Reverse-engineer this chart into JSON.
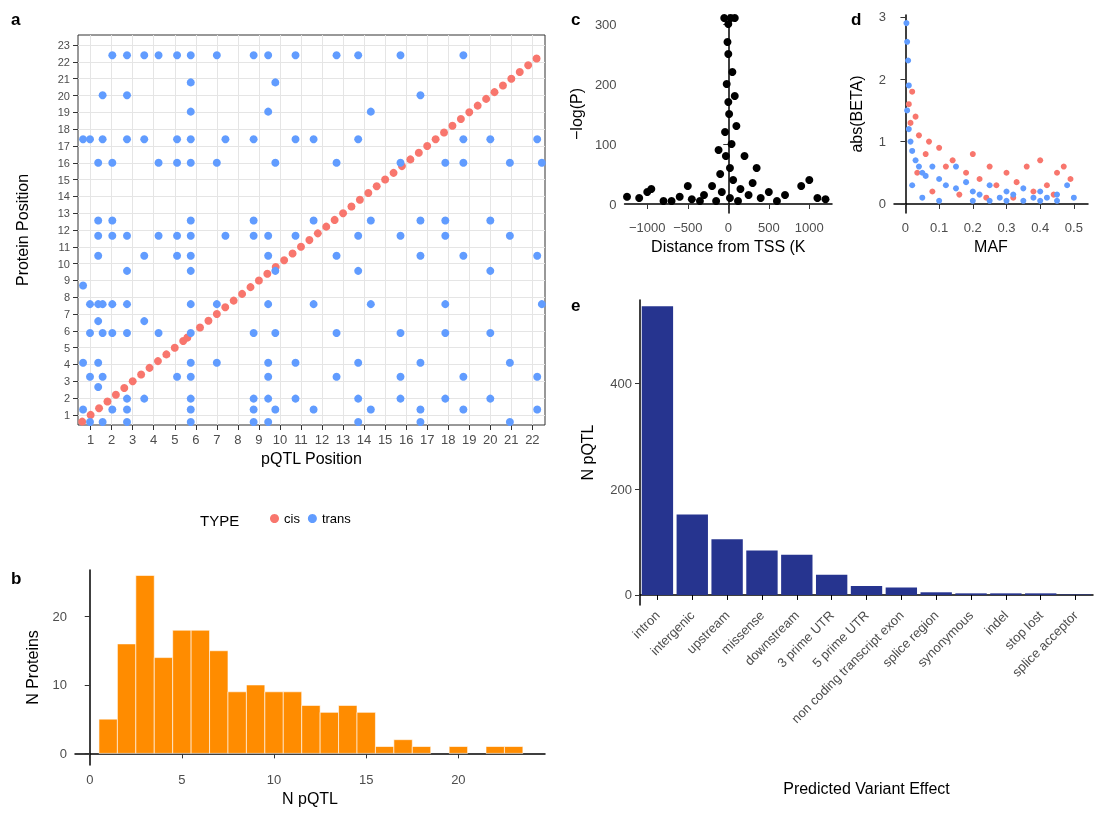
{
  "chart_data": [
    {
      "type": "scatter",
      "title": "a",
      "xlabel": "pQTL Position",
      "ylabel": "Protein Position",
      "legend_title": "TYPE",
      "legend": "bottom",
      "grid": true,
      "marker": "circle",
      "xlim": [
        0.4,
        22.6
      ],
      "ylim": [
        0.4,
        23.6
      ],
      "xticks": [
        1,
        2,
        3,
        4,
        5,
        6,
        7,
        8,
        9,
        10,
        11,
        12,
        13,
        14,
        15,
        16,
        17,
        18,
        19,
        20,
        21,
        22
      ],
      "yticks": [
        1,
        2,
        3,
        4,
        5,
        6,
        7,
        8,
        9,
        10,
        11,
        12,
        13,
        14,
        15,
        16,
        17,
        18,
        19,
        20,
        21,
        22,
        23
      ],
      "series": [
        {
          "name": "cis",
          "color": "#f8766d",
          "x": [
            0.6,
            1.0,
            1.4,
            1.8,
            2.2,
            2.6,
            3.0,
            3.4,
            3.8,
            4.2,
            4.6,
            5.0,
            5.4,
            5.6,
            6.2,
            6.6,
            7.0,
            7.4,
            7.8,
            8.2,
            8.6,
            9.0,
            9.4,
            9.8,
            10.2,
            10.6,
            11.0,
            11.4,
            11.8,
            12.2,
            12.6,
            13.0,
            13.4,
            13.8,
            14.2,
            14.6,
            15.0,
            15.4,
            15.8,
            16.2,
            16.6,
            17.0,
            17.4,
            17.8,
            18.2,
            18.6,
            19.0,
            19.4,
            19.8,
            20.2,
            20.6,
            21.0,
            21.4,
            21.8,
            22.2
          ],
          "values": [
            0.6,
            1.0,
            1.4,
            1.8,
            2.2,
            2.6,
            3.0,
            3.4,
            3.8,
            4.2,
            4.6,
            5.0,
            5.4,
            5.6,
            6.2,
            6.6,
            7.0,
            7.4,
            7.8,
            8.2,
            8.6,
            9.0,
            9.4,
            9.8,
            10.2,
            10.6,
            11.0,
            11.4,
            11.8,
            12.2,
            12.6,
            13.0,
            13.4,
            13.8,
            14.2,
            14.6,
            15.0,
            15.4,
            15.8,
            16.2,
            16.6,
            17.0,
            17.4,
            17.8,
            18.2,
            18.6,
            19.0,
            19.4,
            19.8,
            20.2,
            20.6,
            21.0,
            21.4,
            21.8,
            22.2
          ]
        },
        {
          "name": "trans",
          "color": "#619cff",
          "x": [
            0.64,
            0.64,
            0.64,
            0.64,
            0.97,
            0.97,
            0.97,
            0.97,
            0.97,
            1.36,
            1.36,
            1.36,
            1.36,
            1.36,
            1.36,
            1.36,
            1.36,
            1.57,
            1.57,
            1.57,
            1.57,
            1.57,
            1.57,
            2.03,
            2.03,
            2.03,
            2.03,
            2.03,
            2.03,
            2.03,
            2.73,
            2.73,
            2.73,
            2.73,
            2.73,
            2.73,
            2.73,
            2.73,
            2.73,
            2.73,
            3.55,
            3.55,
            3.55,
            3.55,
            3.55,
            4.23,
            4.23,
            4.23,
            4.23,
            5.11,
            5.11,
            5.11,
            5.11,
            5.11,
            5.11,
            5.76,
            5.76,
            5.76,
            5.76,
            5.76,
            5.76,
            5.76,
            5.76,
            5.76,
            5.76,
            5.76,
            5.76,
            5.76,
            5.76,
            5.76,
            5.76,
            7.0,
            7.0,
            7.0,
            7.0,
            7.41,
            7.41,
            8.75,
            8.75,
            8.75,
            8.75,
            8.75,
            8.75,
            8.75,
            8.75,
            9.44,
            9.44,
            9.44,
            9.44,
            9.44,
            9.44,
            9.44,
            9.44,
            9.44,
            9.78,
            9.78,
            9.78,
            9.78,
            9.78,
            10.74,
            10.74,
            10.74,
            10.74,
            10.74,
            11.6,
            11.6,
            11.6,
            11.6,
            12.69,
            12.69,
            12.69,
            12.69,
            12.69,
            13.72,
            13.72,
            13.72,
            13.72,
            13.72,
            13.72,
            13.72,
            14.32,
            14.32,
            14.32,
            14.32,
            15.73,
            15.73,
            15.73,
            15.73,
            15.73,
            15.73,
            16.68,
            16.68,
            16.68,
            16.68,
            16.68,
            16.68,
            17.86,
            17.86,
            17.86,
            17.86,
            17.86,
            17.86,
            18.72,
            18.72,
            18.72,
            18.72,
            18.72,
            18.72,
            20.0,
            20.0,
            20.0,
            20.0,
            20.0,
            20.93,
            20.93,
            20.93,
            20.93,
            22.23,
            22.23,
            22.23,
            22.23,
            22.45,
            22.45
          ],
          "values": [
            17.4,
            8.7,
            4.1,
            1.32,
            17.4,
            7.59,
            5.87,
            3.27,
            0.58,
            16.0,
            12.57,
            11.66,
            10.47,
            7.59,
            6.58,
            4.1,
            2.66,
            20.02,
            17.4,
            7.59,
            5.87,
            3.27,
            0.58,
            22.4,
            16.0,
            12.57,
            11.66,
            7.59,
            5.87,
            1.32,
            22.4,
            20.02,
            17.4,
            11.66,
            9.57,
            7.59,
            5.87,
            1.97,
            1.32,
            0.58,
            22.4,
            17.4,
            10.47,
            6.58,
            1.97,
            22.4,
            16.0,
            11.66,
            5.87,
            22.4,
            17.4,
            16.0,
            11.66,
            10.47,
            3.27,
            22.4,
            20.78,
            19.04,
            17.4,
            16.0,
            12.57,
            11.66,
            10.47,
            9.57,
            7.59,
            5.87,
            4.1,
            3.27,
            1.97,
            1.32,
            0.58,
            22.4,
            16.0,
            7.59,
            4.1,
            17.4,
            11.66,
            22.4,
            17.4,
            12.57,
            11.66,
            5.87,
            1.97,
            1.32,
            0.58,
            22.4,
            19.04,
            11.66,
            10.47,
            7.59,
            4.1,
            3.27,
            1.97,
            0.58,
            20.78,
            16.0,
            9.57,
            5.87,
            1.32,
            22.4,
            17.4,
            11.66,
            4.1,
            1.97,
            17.4,
            12.57,
            7.59,
            1.32,
            22.4,
            16.0,
            10.47,
            5.87,
            3.27,
            22.4,
            17.4,
            11.66,
            9.57,
            4.1,
            1.97,
            0.58,
            19.04,
            12.57,
            7.59,
            1.32,
            22.4,
            16.0,
            11.66,
            5.87,
            3.27,
            1.97,
            20.02,
            12.57,
            10.47,
            4.1,
            1.32,
            0.58,
            16.0,
            12.57,
            11.66,
            7.59,
            5.87,
            1.97,
            22.4,
            17.4,
            16.0,
            10.47,
            3.27,
            1.32,
            17.4,
            12.57,
            9.57,
            5.87,
            1.97,
            16.0,
            11.66,
            4.1,
            0.58,
            17.4,
            10.47,
            3.27,
            1.32,
            16.0,
            7.59
          ]
        }
      ]
    },
    {
      "type": "histogram",
      "title": "b",
      "xlabel": "N pQTL",
      "ylabel": "N Proteins",
      "color": "#ff8c00",
      "xlim": [
        -0.8,
        24.7
      ],
      "ylim": [
        -1.7,
        26.8
      ],
      "xticks": [
        0,
        5,
        10,
        15,
        20
      ],
      "yticks": [
        0,
        10,
        20
      ],
      "bins": [
        0.5,
        1.5,
        2.5,
        3.5,
        4.5,
        5.5,
        6.5,
        7.5,
        8.5,
        9.5,
        10.5,
        11.5,
        12.5,
        13.5,
        14.5,
        15.5,
        16.5,
        17.5,
        18.5,
        19.5,
        20.5,
        21.5,
        22.5,
        23.5
      ],
      "values": [
        5,
        16,
        26,
        14,
        18,
        18,
        15,
        9,
        10,
        9,
        9,
        7,
        6,
        7,
        6,
        1,
        2,
        1,
        0,
        1,
        0,
        1,
        1
      ]
    },
    {
      "type": "scatter",
      "title": "c",
      "xlabel": "Distance from TSS (K",
      "ylabel": "−log(P)",
      "marker": "circle",
      "color": "#000000",
      "xlim": [
        -1280,
        1280
      ],
      "ylim": [
        -15,
        315
      ],
      "xticks": [
        {
          "value": -1000,
          "label": "−1000"
        },
        {
          "value": -500,
          "label": "−500"
        },
        0,
        500,
        1000
      ],
      "yticks": [
        0,
        100,
        200,
        300
      ],
      "x": [
        -1100,
        -1000,
        -950,
        -700,
        -600,
        -450,
        -300,
        -200,
        -150,
        -100,
        -80,
        -50,
        -40,
        -30,
        -20,
        -10,
        0,
        0,
        0,
        10,
        20,
        20,
        30,
        40,
        50,
        60,
        80,
        100,
        120,
        150,
        200,
        250,
        300,
        400,
        500,
        600,
        700,
        900,
        1000,
        1100,
        1200,
        -1250,
        -800,
        -500,
        -350,
        350,
        -120,
        80
      ],
      "values": [
        10,
        20,
        25,
        5,
        12,
        8,
        15,
        30,
        5,
        50,
        20,
        310,
        120,
        80,
        200,
        270,
        300,
        250,
        170,
        150,
        60,
        10,
        310,
        100,
        220,
        40,
        310,
        130,
        5,
        25,
        80,
        15,
        35,
        10,
        20,
        5,
        15,
        30,
        40,
        10,
        8,
        12,
        5,
        30,
        5,
        60,
        90,
        180
      ]
    },
    {
      "type": "scatter",
      "title": "d",
      "xlabel": "MAF",
      "ylabel": "abs(BETA)",
      "marker": "circle",
      "xlim": [
        -0.034,
        0.542
      ],
      "ylim": [
        -0.145,
        3.03
      ],
      "xticks": [
        0,
        0.1,
        0.2,
        0.3,
        0.4,
        0.5
      ],
      "yticks": [
        0,
        1,
        2,
        3
      ],
      "series": [
        {
          "color": "#f8766d",
          "x": [
            0.01,
            0.02,
            0.03,
            0.015,
            0.04,
            0.06,
            0.07,
            0.1,
            0.12,
            0.14,
            0.18,
            0.2,
            0.22,
            0.25,
            0.27,
            0.3,
            0.33,
            0.36,
            0.38,
            0.4,
            0.42,
            0.45,
            0.47,
            0.49,
            0.08,
            0.16,
            0.24,
            0.32,
            0.44,
            0.035
          ],
          "values": [
            1.6,
            1.8,
            1.4,
            1.3,
            1.1,
            0.8,
            1.0,
            0.9,
            0.6,
            0.7,
            0.5,
            0.8,
            0.4,
            0.6,
            0.3,
            0.5,
            0.35,
            0.6,
            0.2,
            0.7,
            0.3,
            0.5,
            0.6,
            0.4,
            0.2,
            0.15,
            0.1,
            0.1,
            0.15,
            0.5
          ]
        },
        {
          "color": "#619cff",
          "x": [
            0.003,
            0.005,
            0.008,
            0.01,
            0.005,
            0.01,
            0.015,
            0.02,
            0.03,
            0.04,
            0.05,
            0.06,
            0.08,
            0.1,
            0.12,
            0.15,
            0.18,
            0.2,
            0.22,
            0.25,
            0.28,
            0.3,
            0.32,
            0.35,
            0.38,
            0.4,
            0.42,
            0.45,
            0.48,
            0.5,
            0.05,
            0.1,
            0.2,
            0.3,
            0.4,
            0.02,
            0.15,
            0.25,
            0.35,
            0.45
          ],
          "values": [
            2.9,
            2.6,
            2.3,
            1.9,
            1.5,
            1.2,
            1.0,
            0.85,
            0.7,
            0.6,
            0.5,
            0.45,
            0.6,
            0.4,
            0.3,
            0.25,
            0.35,
            0.2,
            0.15,
            0.3,
            0.1,
            0.2,
            0.15,
            0.25,
            0.1,
            0.2,
            0.1,
            0.15,
            0.3,
            0.1,
            0.1,
            0.05,
            0.05,
            0.05,
            0.05,
            0.3,
            0.6,
            0.05,
            0.05,
            0.05
          ]
        }
      ]
    },
    {
      "type": "bar",
      "title": "e",
      "xlabel": "Predicted Variant Effect",
      "ylabel": "N pQTL",
      "color": "#26348f",
      "ylim": [
        -19,
        557
      ],
      "yticks": [
        0,
        200,
        400
      ],
      "categories": [
        "intron",
        "intergenic",
        "upstream",
        "missense",
        "downstream",
        "3 prime UTR",
        "5 prime UTR",
        "non coding transcript exon",
        "splice region",
        "synonymous",
        "indel",
        "stop lost",
        "splice acceptor"
      ],
      "values": [
        545,
        152,
        105,
        84,
        76,
        38,
        17,
        14,
        5,
        3,
        3,
        3,
        1
      ]
    }
  ]
}
